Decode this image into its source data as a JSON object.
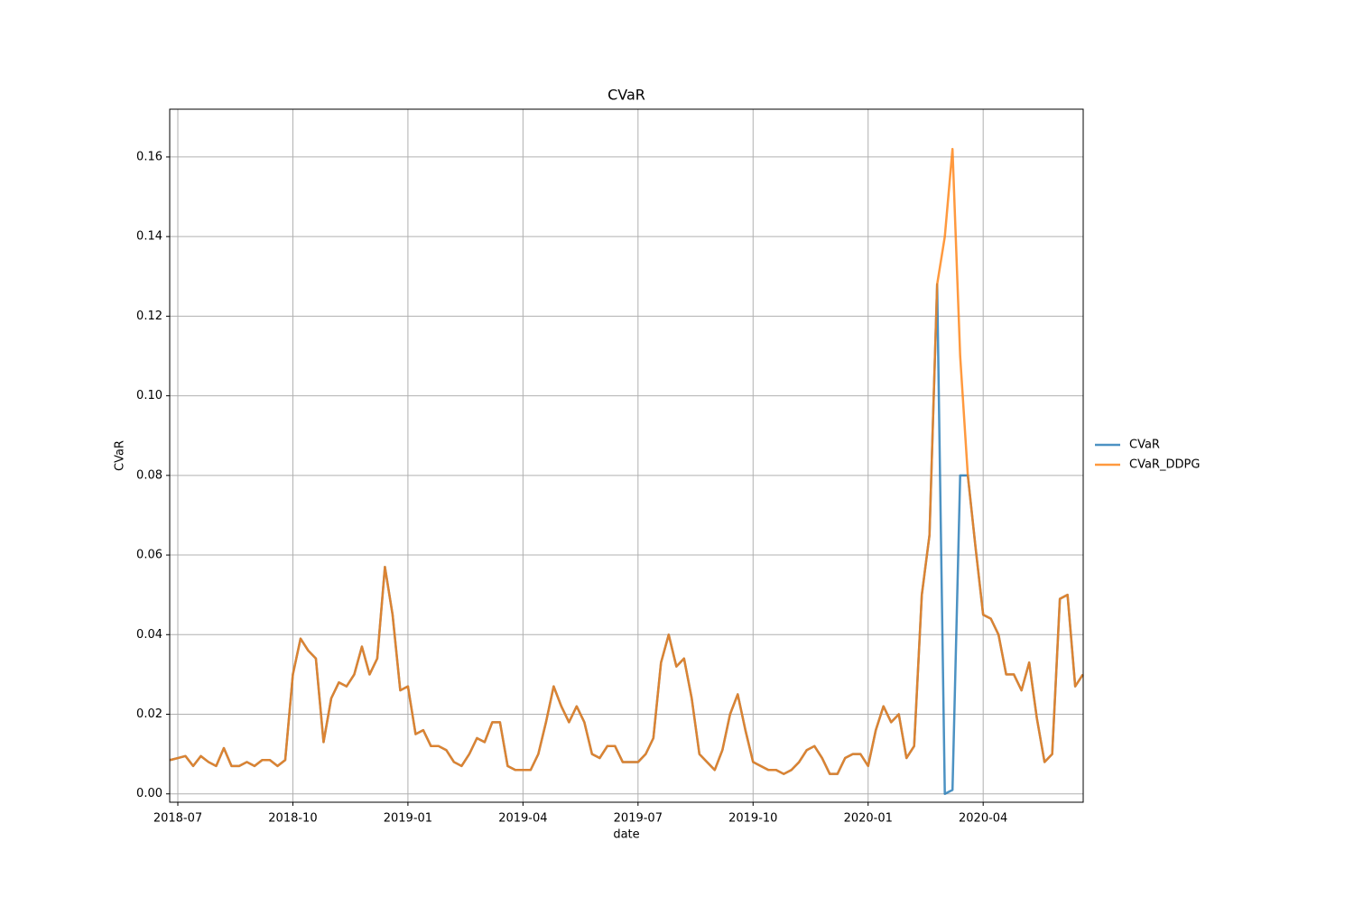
{
  "chart_data": {
    "type": "line",
    "title": "CVaR",
    "xlabel": "date",
    "ylabel": "CVaR",
    "categories": [
      null,
      "2018-07",
      null,
      null,
      null,
      null,
      null,
      null,
      null,
      null,
      null,
      null,
      null,
      null,
      null,
      null,
      "2018-10",
      null,
      null,
      null,
      null,
      null,
      null,
      null,
      null,
      null,
      null,
      null,
      null,
      null,
      null,
      "2019-01",
      null,
      null,
      null,
      null,
      null,
      null,
      null,
      null,
      null,
      null,
      null,
      null,
      null,
      null,
      "2019-04",
      null,
      null,
      null,
      null,
      null,
      null,
      null,
      null,
      null,
      null,
      null,
      null,
      null,
      null,
      "2019-07",
      null,
      null,
      null,
      null,
      null,
      null,
      null,
      null,
      null,
      null,
      null,
      null,
      null,
      null,
      "2019-10",
      null,
      null,
      null,
      null,
      null,
      null,
      null,
      null,
      null,
      null,
      null,
      null,
      null,
      null,
      "2020-01",
      null,
      null,
      null,
      null,
      null,
      null,
      null,
      null,
      null,
      null,
      null,
      null,
      null,
      null,
      "2020-04",
      null,
      null,
      null,
      null,
      null,
      null,
      null,
      null,
      null,
      null,
      null,
      null,
      null
    ],
    "series": [
      {
        "name": "CVaR",
        "color": "#1f77b4",
        "values": [
          0.0085,
          0.009,
          0.0095,
          0.007,
          0.0095,
          0.008,
          0.007,
          0.0115,
          0.007,
          0.007,
          0.008,
          0.007,
          0.0085,
          0.0085,
          0.007,
          0.0085,
          0.03,
          0.039,
          0.036,
          0.034,
          0.013,
          0.024,
          0.028,
          0.027,
          0.03,
          0.037,
          0.03,
          0.034,
          0.057,
          0.045,
          0.026,
          0.027,
          0.015,
          0.016,
          0.012,
          0.012,
          0.011,
          0.008,
          0.007,
          0.01,
          0.014,
          0.013,
          0.018,
          0.018,
          0.007,
          0.006,
          0.006,
          0.006,
          0.01,
          0.018,
          0.027,
          0.022,
          0.018,
          0.022,
          0.018,
          0.01,
          0.009,
          0.012,
          0.012,
          0.008,
          0.008,
          0.008,
          0.01,
          0.014,
          0.033,
          0.04,
          0.032,
          0.034,
          0.024,
          0.01,
          0.008,
          0.006,
          0.011,
          0.02,
          0.025,
          0.016,
          0.008,
          0.007,
          0.006,
          0.006,
          0.005,
          0.006,
          0.008,
          0.011,
          0.012,
          0.009,
          0.005,
          0.005,
          0.009,
          0.01,
          0.01,
          0.007,
          0.016,
          0.022,
          0.018,
          0.02,
          0.009,
          0.012,
          0.05,
          0.065,
          0.128,
          0.0,
          0.001,
          0.08,
          0.08,
          0.062,
          0.045,
          0.044,
          0.04,
          0.03,
          0.03,
          0.026,
          0.033,
          0.019,
          0.008,
          0.01,
          0.049,
          0.05,
          0.027,
          0.03
        ]
      },
      {
        "name": "CVaR_DDPG",
        "color": "#ff7f0e",
        "values": [
          0.0085,
          0.009,
          0.0095,
          0.007,
          0.0095,
          0.008,
          0.007,
          0.0115,
          0.007,
          0.007,
          0.008,
          0.007,
          0.0085,
          0.0085,
          0.007,
          0.0085,
          0.03,
          0.039,
          0.036,
          0.034,
          0.013,
          0.024,
          0.028,
          0.027,
          0.03,
          0.037,
          0.03,
          0.034,
          0.057,
          0.045,
          0.026,
          0.027,
          0.015,
          0.016,
          0.012,
          0.012,
          0.011,
          0.008,
          0.007,
          0.01,
          0.014,
          0.013,
          0.018,
          0.018,
          0.007,
          0.006,
          0.006,
          0.006,
          0.01,
          0.018,
          0.027,
          0.022,
          0.018,
          0.022,
          0.018,
          0.01,
          0.009,
          0.012,
          0.012,
          0.008,
          0.008,
          0.008,
          0.01,
          0.014,
          0.033,
          0.04,
          0.032,
          0.034,
          0.024,
          0.01,
          0.008,
          0.006,
          0.011,
          0.02,
          0.025,
          0.016,
          0.008,
          0.007,
          0.006,
          0.006,
          0.005,
          0.006,
          0.008,
          0.011,
          0.012,
          0.009,
          0.005,
          0.005,
          0.009,
          0.01,
          0.01,
          0.007,
          0.016,
          0.022,
          0.018,
          0.02,
          0.009,
          0.012,
          0.05,
          0.065,
          0.128,
          0.14,
          0.162,
          0.11,
          0.08,
          0.062,
          0.045,
          0.044,
          0.04,
          0.03,
          0.03,
          0.026,
          0.033,
          0.019,
          0.008,
          0.01,
          0.049,
          0.05,
          0.027,
          0.03
        ]
      }
    ],
    "ylim": [
      -0.0021,
      0.172
    ],
    "yticks": [
      {
        "value": 0,
        "label": "0.00"
      },
      {
        "value": 0.02,
        "label": "0.02"
      },
      {
        "value": 0.04,
        "label": "0.04"
      },
      {
        "value": 0.06,
        "label": "0.06"
      },
      {
        "value": 0.08,
        "label": "0.08"
      },
      {
        "value": 0.1,
        "label": "0.10"
      },
      {
        "value": 0.12,
        "label": "0.12"
      },
      {
        "value": 0.14,
        "label": "0.14"
      },
      {
        "value": 0.16,
        "label": "0.16"
      }
    ],
    "grid": true,
    "legend": "right"
  }
}
